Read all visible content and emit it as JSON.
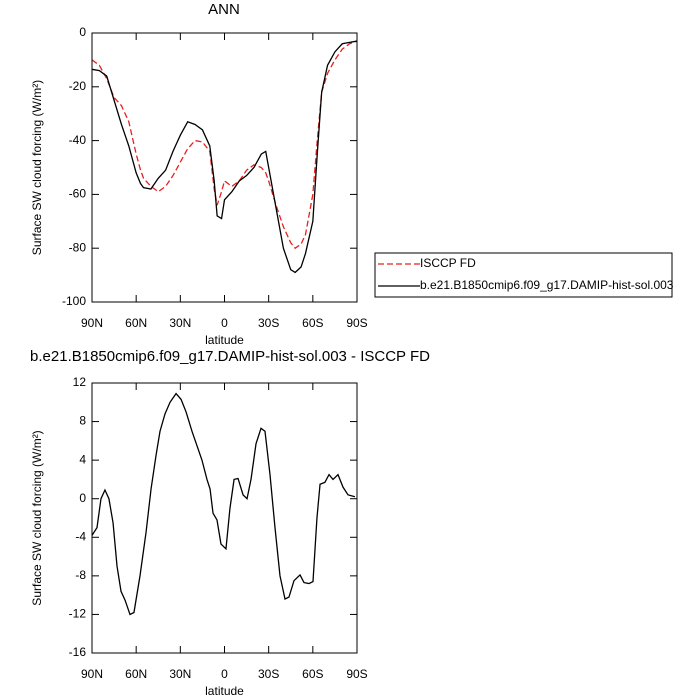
{
  "chart_data": [
    {
      "type": "line",
      "title": "ANN",
      "ylabel": "Surface SW cloud forcing (W/m²)",
      "xlabel": "latitude",
      "x": [
        90,
        85,
        80,
        75,
        70,
        65,
        60,
        57,
        55,
        50,
        45,
        40,
        35,
        30,
        25,
        20,
        15,
        10,
        7,
        5,
        2,
        0,
        -5,
        -10,
        -15,
        -20,
        -25,
        -28,
        -30,
        -35,
        -40,
        -45,
        -48,
        -52,
        -55,
        -60,
        -63,
        -66,
        -70,
        -75,
        -80,
        -85,
        -90
      ],
      "series": [
        {
          "name": "ISCCP FD",
          "color": "#e8201e",
          "dashed": true,
          "values": [
            -10,
            -12,
            -17,
            -24,
            -27,
            -33,
            -45,
            -51,
            -54,
            -57,
            -59,
            -57,
            -53,
            -48,
            -43,
            -40,
            -40.5,
            -44,
            -58,
            -64,
            -59,
            -55,
            -57,
            -55,
            -51,
            -49,
            -50,
            -52,
            -55,
            -64,
            -72,
            -78,
            -80,
            -78.5,
            -75,
            -60,
            -40,
            -22,
            -15,
            -10,
            -6,
            -4,
            -3
          ]
        },
        {
          "name": "b.e21.B1850cmip6.f09_g17.DAMIP-hist-sol.003",
          "color": "#000000",
          "dashed": false,
          "values": [
            -13.5,
            -14,
            -16,
            -25,
            -34,
            -42,
            -52,
            -56,
            -57.5,
            -58,
            -54,
            -51,
            -44,
            -38,
            -33,
            -34,
            -36,
            -42,
            -55,
            -68,
            -69,
            -62,
            -59,
            -55,
            -53,
            -50,
            -45,
            -44,
            -50,
            -65,
            -80,
            -88,
            -89,
            -87,
            -82,
            -70,
            -45,
            -22,
            -12,
            -7,
            -4,
            -3.5,
            -3
          ]
        }
      ],
      "xlim": [
        90,
        -90
      ],
      "xticks": [
        {
          "value": 90,
          "label": "90N"
        },
        {
          "value": 60,
          "label": "60N"
        },
        {
          "value": 30,
          "label": "30N"
        },
        0,
        {
          "value": -30,
          "label": "30S"
        },
        {
          "value": -60,
          "label": "60S"
        },
        {
          "value": -90,
          "label": "90S"
        }
      ],
      "ylim": [
        -100,
        0
      ],
      "yticks": [
        0,
        -20,
        -40,
        -60,
        -80,
        -100
      ],
      "legend": "outside right"
    },
    {
      "type": "line",
      "title": "b.e21.B1850cmip6.f09_g17.DAMIP-hist-sol.003 - ISCCP FD",
      "ylabel": "Surface SW cloud forcing (W/m²)",
      "xlabel": "latitude",
      "x": [
        90,
        86.6,
        83.9,
        81.2,
        78.5,
        75.7,
        73,
        70.3,
        67.6,
        64.2,
        61.5,
        57.4,
        53.3,
        49.9,
        46.5,
        43.8,
        40.4,
        37,
        32.9,
        29.5,
        26.1,
        22.1,
        18.7,
        15.3,
        11.9,
        9.8,
        7.8,
        5.1,
        2.4,
        -1,
        -3.7,
        -6.5,
        -9.2,
        -12.6,
        -15.3,
        -18,
        -21.4,
        -24.8,
        -27.5,
        -30.9,
        -34.3,
        -37.7,
        -41.1,
        -43.8,
        -47.2,
        -51.3,
        -54,
        -57.4,
        -60.1,
        -62.8,
        -64.9,
        -68.2,
        -71,
        -73.7,
        -77.1,
        -80.5,
        -83.9,
        -88.6
      ],
      "values": [
        -3.8,
        -3,
        0,
        0.9,
        0,
        -2.5,
        -7,
        -9.6,
        -10.5,
        -12,
        -11.8,
        -8,
        -3.5,
        1,
        4.5,
        7,
        8.8,
        10,
        10.9,
        10.3,
        9,
        7,
        5.5,
        4,
        2,
        1,
        -1.5,
        -2.2,
        -4.7,
        -5.2,
        -1,
        2,
        2.1,
        0.4,
        0,
        2,
        5.7,
        7.3,
        7,
        2.5,
        -3,
        -8,
        -10.4,
        -10.2,
        -8.5,
        -7.9,
        -8.7,
        -8.8,
        -8.6,
        -2,
        1.5,
        1.7,
        2.5,
        2,
        2.5,
        1.2,
        0.4,
        0.2
      ],
      "color": "#000000",
      "xlim": [
        90,
        -90
      ],
      "xticks": [
        {
          "value": 90,
          "label": "90N"
        },
        {
          "value": 60,
          "label": "60N"
        },
        {
          "value": 30,
          "label": "30N"
        },
        0,
        {
          "value": -30,
          "label": "30S"
        },
        {
          "value": -60,
          "label": "60S"
        },
        {
          "value": -90,
          "label": "90S"
        }
      ],
      "ylim": [
        -16,
        12
      ],
      "yticks": [
        12,
        8,
        4,
        0,
        -4,
        -8,
        -12,
        -16
      ]
    }
  ]
}
